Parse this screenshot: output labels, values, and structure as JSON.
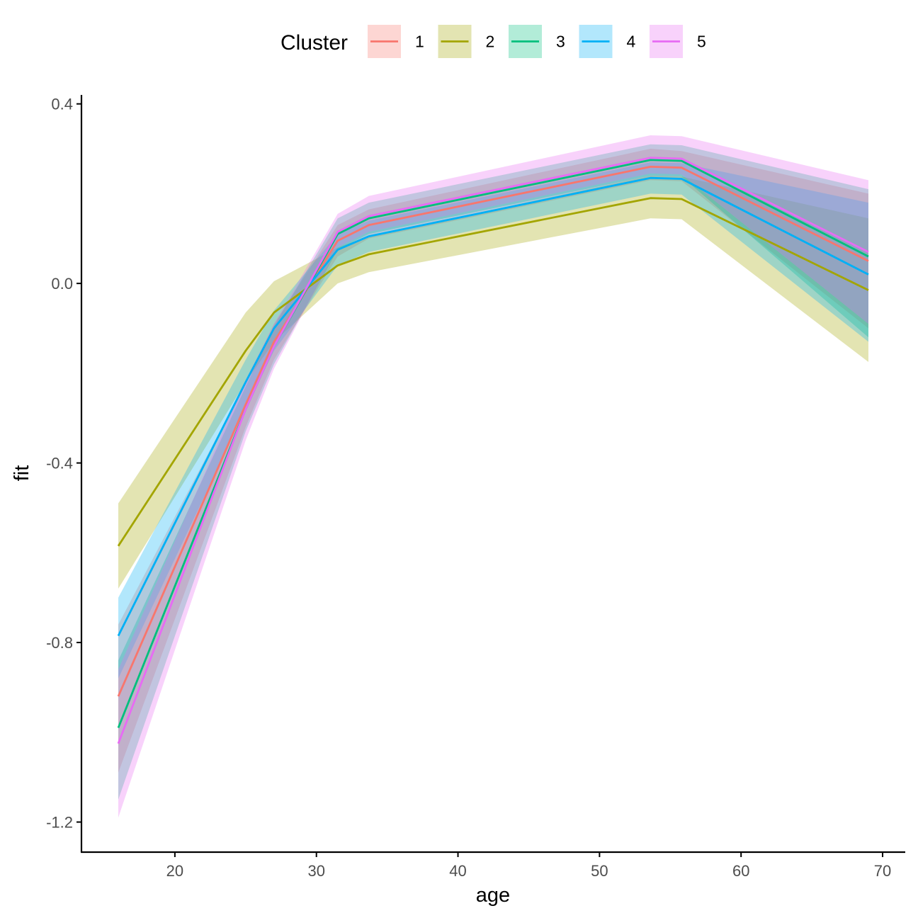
{
  "chart_data": {
    "type": "line",
    "xlabel": "age",
    "ylabel": "fit",
    "xlim": [
      13.4,
      71.6
    ],
    "ylim": [
      -1.267,
      0.42
    ],
    "x_ticks": [
      20,
      30,
      40,
      50,
      60,
      70
    ],
    "x_tick_labels": [
      "20",
      "30",
      "40",
      "50",
      "60",
      "70"
    ],
    "y_ticks": [
      0.4,
      0.0,
      -0.4,
      -0.8,
      -1.2
    ],
    "y_tick_labels": [
      "0.4",
      "0.0",
      "-0.4",
      "-0.8",
      "-1.2"
    ],
    "grid": false,
    "legend": {
      "title": "Cluster",
      "position": "top"
    },
    "x": [
      16,
      25,
      27,
      31.5,
      33.7,
      53.6,
      55.8,
      69
    ],
    "series": [
      {
        "name": "1",
        "color": "#F8766D",
        "fit": [
          -0.92,
          -0.27,
          -0.13,
          0.095,
          0.13,
          0.26,
          0.258,
          0.05
        ],
        "lower": [
          -1.09,
          -0.32,
          -0.17,
          0.06,
          0.1,
          0.23,
          0.228,
          -0.1
        ],
        "upper": [
          -0.76,
          -0.22,
          -0.09,
          0.13,
          0.165,
          0.3,
          0.295,
          0.2
        ]
      },
      {
        "name": "2",
        "color": "#A3A500",
        "fit": [
          -0.585,
          -0.15,
          -0.065,
          0.04,
          0.065,
          0.19,
          0.188,
          -0.015
        ],
        "lower": [
          -0.68,
          -0.22,
          -0.13,
          0.0,
          0.025,
          0.145,
          0.143,
          -0.175
        ],
        "upper": [
          -0.49,
          -0.065,
          0.005,
          0.08,
          0.105,
          0.24,
          0.238,
          0.145
        ]
      },
      {
        "name": "3",
        "color": "#00BF7D",
        "fit": [
          -0.99,
          -0.28,
          -0.14,
          0.11,
          0.145,
          0.275,
          0.273,
          0.06
        ],
        "lower": [
          -1.15,
          -0.33,
          -0.18,
          0.075,
          0.11,
          0.24,
          0.238,
          -0.12
        ],
        "upper": [
          -0.84,
          -0.23,
          -0.095,
          0.145,
          0.18,
          0.31,
          0.308,
          0.21
        ]
      },
      {
        "name": "4",
        "color": "#00B0F6",
        "fit": [
          -0.785,
          -0.22,
          -0.1,
          0.075,
          0.105,
          0.235,
          0.233,
          0.02
        ],
        "lower": [
          -0.88,
          -0.28,
          -0.15,
          0.04,
          0.07,
          0.2,
          0.198,
          -0.13
        ],
        "upper": [
          -0.7,
          -0.17,
          -0.06,
          0.11,
          0.14,
          0.27,
          0.268,
          0.18
        ]
      },
      {
        "name": "5",
        "color": "#E76BF3",
        "fit": [
          -1.025,
          -0.28,
          -0.14,
          0.115,
          0.15,
          0.28,
          0.278,
          0.07
        ],
        "lower": [
          -1.19,
          -0.35,
          -0.19,
          0.08,
          0.115,
          0.245,
          0.243,
          -0.09
        ],
        "upper": [
          -0.86,
          -0.215,
          -0.09,
          0.155,
          0.195,
          0.33,
          0.328,
          0.23
        ]
      }
    ]
  }
}
